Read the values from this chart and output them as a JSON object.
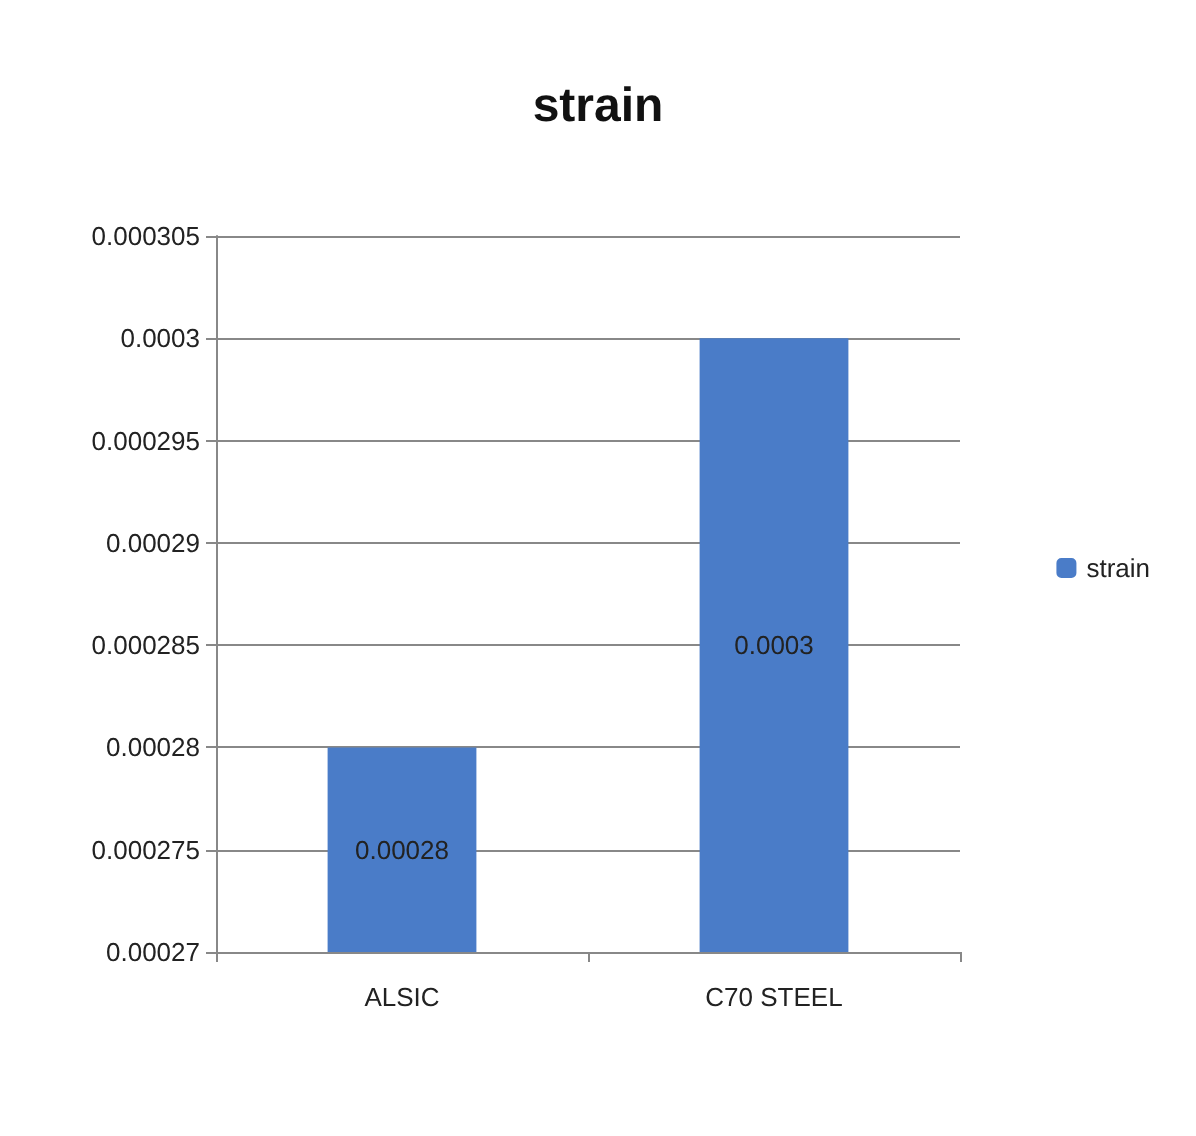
{
  "chart_data": {
    "type": "bar",
    "title": "strain",
    "categories": [
      "ALSIC",
      "C70 STEEL"
    ],
    "series": [
      {
        "name": "strain",
        "color": "#4a7cc8",
        "values": [
          0.00028,
          0.0003
        ]
      }
    ],
    "ylim": [
      0.00027,
      0.000305
    ],
    "yticks": [
      0.00027,
      0.000275,
      0.00028,
      0.000285,
      0.00029,
      0.000295,
      0.0003,
      0.000305
    ],
    "grid": "y",
    "legend": "right",
    "data_labels": true
  }
}
